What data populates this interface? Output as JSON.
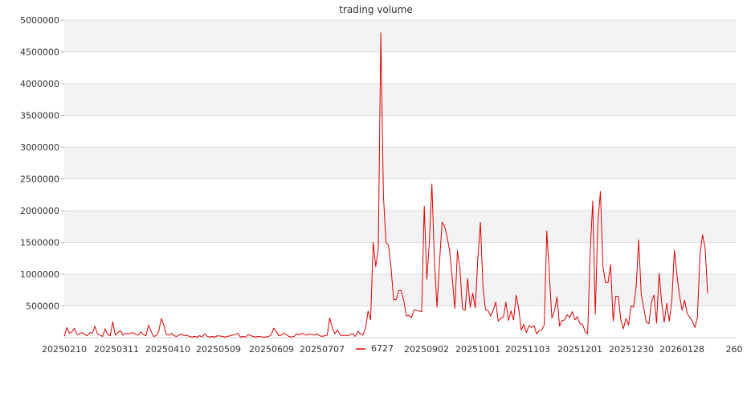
{
  "chart_data": {
    "type": "line",
    "title": "trading volume",
    "xlabel": "",
    "ylabel": "",
    "ylim": [
      0,
      5000000
    ],
    "yticks": [
      "500000",
      "1000000",
      "1500000",
      "2000000",
      "2500000",
      "3000000",
      "3500000",
      "4000000",
      "4500000",
      "5000000"
    ],
    "xticks": [
      "20250210",
      "20250311",
      "20250410",
      "20250509",
      "20250609",
      "20250707",
      "20250902",
      "20251001",
      "20251103",
      "20251201",
      "20251230",
      "20260128",
      "260"
    ],
    "grid": true,
    "legend_position": "bottom",
    "series": [
      {
        "name": "6727",
        "color": "#dd0000",
        "values": [
          20000,
          160000,
          70000,
          90000,
          150000,
          50000,
          60000,
          80000,
          50000,
          30000,
          80000,
          70000,
          180000,
          60000,
          40000,
          20000,
          140000,
          50000,
          30000,
          250000,
          40000,
          80000,
          110000,
          40000,
          70000,
          60000,
          70000,
          80000,
          50000,
          40000,
          90000,
          50000,
          30000,
          200000,
          100000,
          20000,
          30000,
          100000,
          300000,
          200000,
          50000,
          40000,
          70000,
          30000,
          20000,
          40000,
          60000,
          30000,
          40000,
          20000,
          10000,
          20000,
          10000,
          30000,
          15000,
          60000,
          20000,
          10000,
          20000,
          10000,
          30000,
          25000,
          20000,
          10000,
          20000,
          30000,
          40000,
          50000,
          70000,
          10000,
          20000,
          10000,
          50000,
          30000,
          20000,
          10000,
          20000,
          15000,
          10000,
          10000,
          20000,
          40000,
          150000,
          100000,
          30000,
          40000,
          70000,
          50000,
          20000,
          10000,
          20000,
          60000,
          40000,
          70000,
          50000,
          40000,
          60000,
          50000,
          40000,
          60000,
          30000,
          20000,
          30000,
          40000,
          310000,
          150000,
          60000,
          120000,
          50000,
          30000,
          40000,
          30000,
          50000,
          60000,
          20000,
          100000,
          60000,
          40000,
          150000,
          420000,
          280000,
          1500000,
          1120000,
          1400000,
          4800000,
          2250000,
          1500000,
          1450000,
          1100000,
          600000,
          600000,
          740000,
          740000,
          580000,
          340000,
          350000,
          310000,
          440000,
          430000,
          420000,
          410000,
          2070000,
          920000,
          1500000,
          2420000,
          1200000,
          480000,
          1200000,
          1820000,
          1750000,
          1580000,
          1350000,
          920000,
          460000,
          1370000,
          1080000,
          450000,
          430000,
          930000,
          480000,
          700000,
          470000,
          1250000,
          1820000,
          800000,
          440000,
          430000,
          340000,
          430000,
          560000,
          260000,
          310000,
          320000,
          560000,
          270000,
          420000,
          280000,
          670000,
          460000,
          120000,
          210000,
          80000,
          190000,
          160000,
          190000,
          60000,
          110000,
          120000,
          200000,
          1680000,
          1000000,
          310000,
          420000,
          640000,
          180000,
          270000,
          280000,
          360000,
          320000,
          410000,
          280000,
          330000,
          220000,
          210000,
          100000,
          60000,
          1350000,
          2150000,
          370000,
          1800000,
          2300000,
          1120000,
          870000,
          870000,
          1150000,
          260000,
          650000,
          650000,
          280000,
          140000,
          300000,
          200000,
          500000,
          480000,
          800000,
          1540000,
          680000,
          460000,
          240000,
          220000,
          560000,
          670000,
          230000,
          1010000,
          550000,
          240000,
          540000,
          260000,
          600000,
          1380000,
          980000,
          660000,
          430000,
          590000,
          380000,
          320000,
          260000,
          160000,
          320000,
          1300000,
          1620000,
          1420000,
          700000
        ]
      }
    ]
  }
}
